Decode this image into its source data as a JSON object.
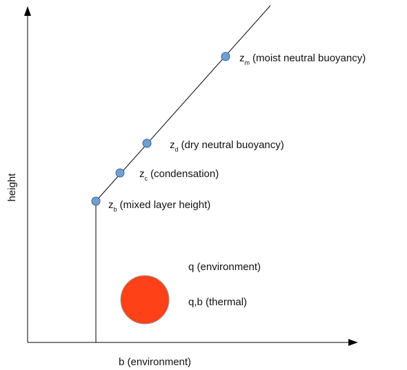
{
  "axes": {
    "y_label": "height",
    "x_label": "b (environment)"
  },
  "points": [
    {
      "symbol": "z",
      "subscript": "b",
      "label": "(mixed layer height)"
    },
    {
      "symbol": "z",
      "subscript": "c",
      "label": "(condensation)"
    },
    {
      "symbol": "z",
      "subscript": "d",
      "label": "(dry neutral buoyancy)"
    },
    {
      "symbol": "z",
      "subscript": "m",
      "label": "(moist neutral buoyancy)"
    }
  ],
  "legend": [
    "q (environment)",
    "q,b (thermal)"
  ]
}
